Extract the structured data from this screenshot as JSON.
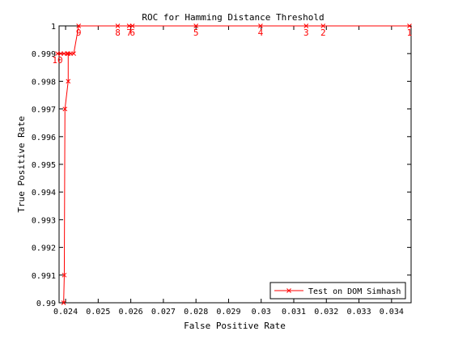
{
  "chart_data": {
    "type": "line",
    "title": "ROC for Hamming Distance Threshold",
    "xlabel": "False Positive Rate",
    "ylabel": "True Positive Rate",
    "xlim": [
      0.0238,
      0.0346
    ],
    "ylim": [
      0.99,
      1.0
    ],
    "xticks": [
      "0.024",
      "0.025",
      "0.026",
      "0.027",
      "0.028",
      "0.029",
      "0.03",
      "0.031",
      "0.032",
      "0.033",
      "0.034"
    ],
    "yticks": [
      "0.99",
      "0.991",
      "0.992",
      "0.993",
      "0.994",
      "0.995",
      "0.996",
      "0.997",
      "0.998",
      "0.999",
      "1"
    ],
    "grid": false,
    "legend_position": "bottom-right",
    "series": [
      {
        "name": "Test on DOM Simhash",
        "color": "#ff0000",
        "marker": "x",
        "points": [
          {
            "x": 0.02394,
            "y": 0.99
          },
          {
            "x": 0.02396,
            "y": 0.991
          },
          {
            "x": 0.02398,
            "y": 0.997
          },
          {
            "x": 0.02408,
            "y": 0.998
          },
          {
            "x": 0.02408,
            "y": 0.999
          },
          {
            "x": 0.02375,
            "y": 0.999
          },
          {
            "x": 0.02385,
            "y": 0.999
          },
          {
            "x": 0.02395,
            "y": 0.999
          },
          {
            "x": 0.02405,
            "y": 0.999
          },
          {
            "x": 0.02415,
            "y": 0.999
          },
          {
            "x": 0.02425,
            "y": 0.999
          },
          {
            "x": 0.0244,
            "y": 1.0
          },
          {
            "x": 0.0256,
            "y": 1.0
          },
          {
            "x": 0.02595,
            "y": 1.0
          },
          {
            "x": 0.02605,
            "y": 1.0
          },
          {
            "x": 0.028,
            "y": 1.0
          },
          {
            "x": 0.02998,
            "y": 1.0
          },
          {
            "x": 0.03138,
            "y": 1.0
          },
          {
            "x": 0.0319,
            "y": 1.0
          },
          {
            "x": 0.03455,
            "y": 1.0
          }
        ]
      }
    ],
    "annotations": [
      {
        "text": "10",
        "x": 0.02375,
        "y": 0.999,
        "pos": "below"
      },
      {
        "text": "9",
        "x": 0.0244,
        "y": 1.0,
        "pos": "below"
      },
      {
        "text": "8",
        "x": 0.0256,
        "y": 1.0,
        "pos": "below"
      },
      {
        "text": "7",
        "x": 0.02595,
        "y": 1.0,
        "pos": "below"
      },
      {
        "text": "6",
        "x": 0.02605,
        "y": 1.0,
        "pos": "below"
      },
      {
        "text": "5",
        "x": 0.028,
        "y": 1.0,
        "pos": "below"
      },
      {
        "text": "4",
        "x": 0.02998,
        "y": 1.0,
        "pos": "below"
      },
      {
        "text": "3",
        "x": 0.03138,
        "y": 1.0,
        "pos": "below"
      },
      {
        "text": "2",
        "x": 0.0319,
        "y": 1.0,
        "pos": "below"
      },
      {
        "text": "1",
        "x": 0.03455,
        "y": 1.0,
        "pos": "below"
      }
    ]
  }
}
